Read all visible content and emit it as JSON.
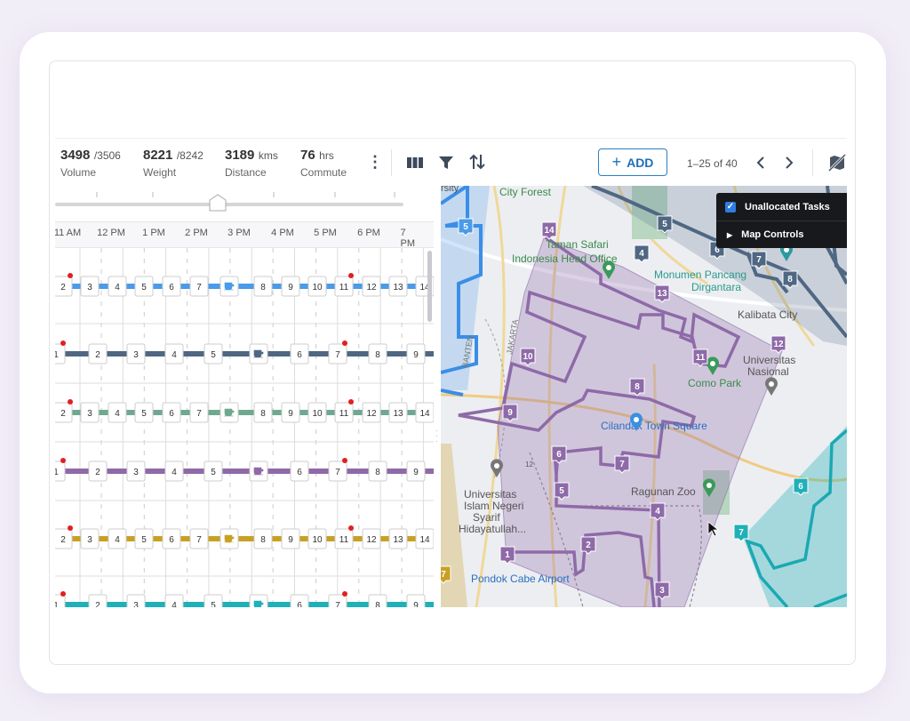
{
  "stats": [
    {
      "value": "3498",
      "unit": "/3506",
      "label": "Volume"
    },
    {
      "value": "8221",
      "unit": "/8242",
      "label": "Weight"
    },
    {
      "value": "3189",
      "unit": "kms",
      "label": "Distance"
    },
    {
      "value": "76",
      "unit": "hrs",
      "label": "Commute"
    }
  ],
  "toolbar": {
    "add_label": "ADD",
    "pager": "1–25 of 40"
  },
  "timeline": {
    "hours": [
      "11 AM",
      "12 PM",
      "1 PM",
      "2 PM",
      "3 PM",
      "4 PM",
      "5 PM",
      "6 PM",
      "7 PM"
    ],
    "slider_value_hour": "2:45 PM",
    "rows": [
      {
        "color": "#4a9be8",
        "stops": [
          "2",
          "3",
          "4",
          "5",
          "6",
          "7",
          "break",
          "8",
          "9",
          "10",
          "11",
          "12",
          "13",
          "14"
        ],
        "alerts": [
          "2",
          "11"
        ]
      },
      {
        "color": "#4f6782",
        "stops": [
          "1",
          "2",
          "3",
          "4",
          "5",
          "break",
          "6",
          "7",
          "8",
          "9"
        ],
        "alerts": [
          "1",
          "7"
        ]
      },
      {
        "color": "#6fa890",
        "stops": [
          "2",
          "3",
          "4",
          "5",
          "6",
          "7",
          "break",
          "8",
          "9",
          "10",
          "11",
          "12",
          "13",
          "14"
        ],
        "alerts": [
          "2",
          "11"
        ]
      },
      {
        "color": "#8e6aa8",
        "stops": [
          "1",
          "2",
          "3",
          "4",
          "5",
          "break",
          "6",
          "7",
          "8",
          "9"
        ],
        "alerts": [
          "1",
          "7"
        ]
      },
      {
        "color": "#c9a024",
        "stops": [
          "2",
          "3",
          "4",
          "5",
          "6",
          "7",
          "break",
          "8",
          "9",
          "10",
          "11",
          "12",
          "13",
          "14"
        ],
        "alerts": [
          "2",
          "11"
        ]
      },
      {
        "color": "#1fb0b8",
        "stops": [
          "1",
          "2",
          "3",
          "4",
          "5",
          "break",
          "6",
          "7",
          "8",
          "9"
        ],
        "alerts": [
          "1",
          "7"
        ]
      }
    ]
  },
  "map": {
    "controls": {
      "unallocated": "Unallocated Tasks",
      "unallocated_checked": true,
      "map_controls": "Map Controls"
    },
    "places": [
      "City Forest",
      "Taman Safari",
      "Indonesia Head Office",
      "Monumen Pancang",
      "Dirgantara",
      "Kalibata City",
      "Universitas",
      "Nasional",
      "Como Park",
      "Cilandak Town Square",
      "Ragunan Zoo",
      "Universitas",
      "Islam Negeri",
      "Syarif",
      "Hidayatullah...",
      "Pondok Cabe Airport",
      "JAKARTA",
      "BANTEN",
      "rsity",
      "12"
    ],
    "markers": [
      {
        "label": "14",
        "color": "#8e6aa8"
      },
      {
        "label": "13",
        "color": "#8e6aa8"
      },
      {
        "label": "12",
        "color": "#8e6aa8"
      },
      {
        "label": "11",
        "color": "#8e6aa8"
      },
      {
        "label": "10",
        "color": "#8e6aa8"
      },
      {
        "label": "9",
        "color": "#8e6aa8"
      },
      {
        "label": "8",
        "color": "#8e6aa8"
      },
      {
        "label": "7",
        "color": "#8e6aa8"
      },
      {
        "label": "6",
        "color": "#8e6aa8"
      },
      {
        "label": "5",
        "color": "#8e6aa8"
      },
      {
        "label": "4",
        "color": "#8e6aa8"
      },
      {
        "label": "3",
        "color": "#8e6aa8"
      },
      {
        "label": "2",
        "color": "#8e6aa8"
      },
      {
        "label": "1",
        "color": "#8e6aa8"
      },
      {
        "label": "5",
        "color": "#4a9be8"
      },
      {
        "label": "5",
        "color": "#4f6782"
      },
      {
        "label": "4",
        "color": "#4f6782"
      },
      {
        "label": "6",
        "color": "#4f6782"
      },
      {
        "label": "7",
        "color": "#4f6782"
      },
      {
        "label": "8",
        "color": "#4f6782"
      },
      {
        "label": "6",
        "color": "#1fb0b8"
      },
      {
        "label": "7",
        "color": "#1fb0b8"
      },
      {
        "label": "7",
        "color": "#c9a024"
      }
    ]
  }
}
